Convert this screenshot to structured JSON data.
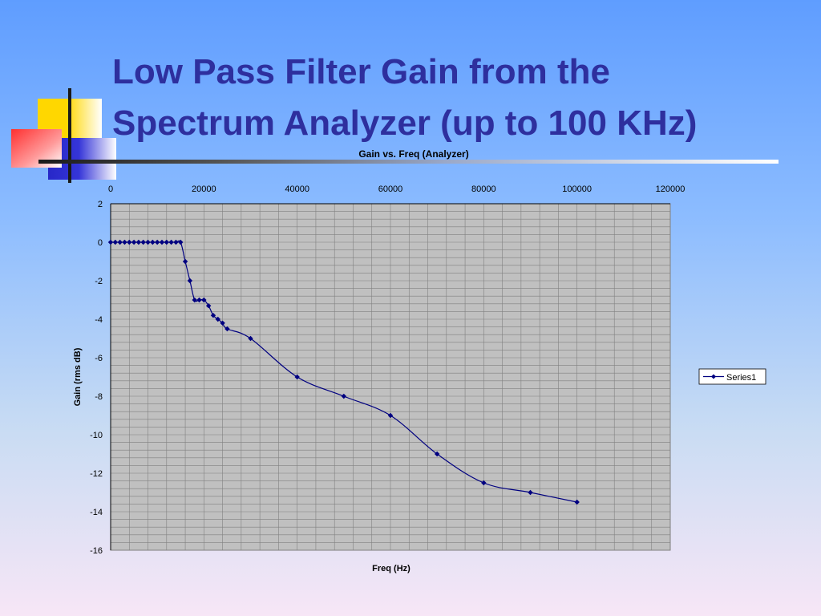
{
  "slide": {
    "title_line1": "Low Pass Filter Gain from the",
    "title_line2": "Spectrum Analyzer (up to 100 KHz)"
  },
  "colors": {
    "title": "#2e2f9e",
    "series": "#000080",
    "plot_bg": "#c0c0c0",
    "grid": "#808080"
  },
  "chart_data": {
    "type": "line",
    "title": "Gain vs. Freq (Analyzer)",
    "xlabel": "Freq (Hz)",
    "ylabel": "Gain (rms dB)",
    "xlim": [
      0,
      120000
    ],
    "ylim": [
      -16,
      2
    ],
    "x_ticks": [
      0,
      20000,
      40000,
      60000,
      80000,
      100000,
      120000
    ],
    "y_ticks": [
      2,
      0,
      -2,
      -4,
      -6,
      -8,
      -10,
      -12,
      -14,
      -16
    ],
    "x_axis_position": "top",
    "grid": true,
    "legend_position": "right",
    "series": [
      {
        "name": "Series1",
        "x": [
          0,
          1000,
          2000,
          3000,
          4000,
          5000,
          6000,
          7000,
          8000,
          9000,
          10000,
          11000,
          12000,
          13000,
          14000,
          15000,
          16000,
          17000,
          18000,
          19000,
          20000,
          21000,
          22000,
          23000,
          24000,
          25000,
          30000,
          40000,
          50000,
          60000,
          70000,
          80000,
          90000,
          100000
        ],
        "y": [
          0,
          0,
          0,
          0,
          0,
          0,
          0,
          0,
          0,
          0,
          0,
          0,
          0,
          0,
          0,
          0,
          -1,
          -2,
          -3,
          -3,
          -3,
          -3.3,
          -3.8,
          -4,
          -4.2,
          -4.5,
          -5,
          -7,
          -8,
          -9,
          -11,
          -12.5,
          -13,
          -13.5
        ]
      }
    ]
  }
}
